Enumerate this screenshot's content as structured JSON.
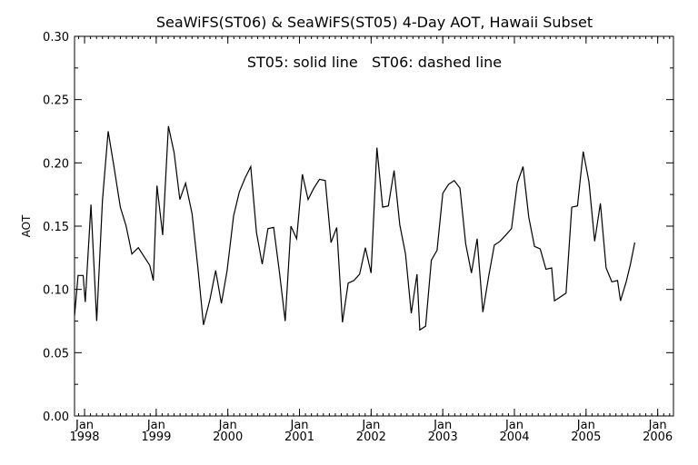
{
  "chart_data": {
    "type": "line",
    "title": "SeaWiFS(ST06) & SeaWiFS(ST05) 4-Day AOT, Hawaii Subset",
    "annotation": "ST05: solid line   ST06: dashed line",
    "ylabel": "AOT",
    "xlabel": "",
    "ylim": [
      0.0,
      0.3
    ],
    "yticks": [
      "0.00",
      "0.05",
      "0.10",
      "0.15",
      "0.20",
      "0.25",
      "0.30"
    ],
    "xlim": [
      1997.86,
      2006.22
    ],
    "xticks": [
      {
        "month": "Jan",
        "year": "1998"
      },
      {
        "month": "Jan",
        "year": "1999"
      },
      {
        "month": "Jan",
        "year": "2000"
      },
      {
        "month": "Jan",
        "year": "2001"
      },
      {
        "month": "Jan",
        "year": "2002"
      },
      {
        "month": "Jan",
        "year": "2003"
      },
      {
        "month": "Jan",
        "year": "2004"
      },
      {
        "month": "Jan",
        "year": "2005"
      },
      {
        "month": "Jan",
        "year": "2006"
      }
    ],
    "grid": false,
    "line_color": "#000000",
    "series": [
      {
        "name": "ST05",
        "style": "solid",
        "points": [
          [
            1997.86,
            0.079
          ],
          [
            1997.91,
            0.111
          ],
          [
            1997.98,
            0.111
          ],
          [
            1998.01,
            0.09
          ],
          [
            1998.09,
            0.167
          ],
          [
            1998.17,
            0.075
          ],
          [
            1998.25,
            0.17
          ],
          [
            1998.33,
            0.225
          ],
          [
            1998.41,
            0.197
          ],
          [
            1998.5,
            0.165
          ],
          [
            1998.58,
            0.15
          ],
          [
            1998.66,
            0.128
          ],
          [
            1998.75,
            0.133
          ],
          [
            1998.83,
            0.126
          ],
          [
            1998.91,
            0.119
          ],
          [
            1998.96,
            0.107
          ],
          [
            1999.01,
            0.182
          ],
          [
            1999.09,
            0.143
          ],
          [
            1999.17,
            0.229
          ],
          [
            1999.25,
            0.208
          ],
          [
            1999.33,
            0.171
          ],
          [
            1999.41,
            0.184
          ],
          [
            1999.5,
            0.16
          ],
          [
            1999.58,
            0.118
          ],
          [
            1999.66,
            0.072
          ],
          [
            1999.75,
            0.092
          ],
          [
            1999.83,
            0.115
          ],
          [
            1999.91,
            0.089
          ],
          [
            1999.99,
            0.115
          ],
          [
            2000.08,
            0.158
          ],
          [
            2000.16,
            0.177
          ],
          [
            2000.24,
            0.188
          ],
          [
            2000.32,
            0.197
          ],
          [
            2000.4,
            0.145
          ],
          [
            2000.48,
            0.12
          ],
          [
            2000.56,
            0.148
          ],
          [
            2000.64,
            0.149
          ],
          [
            2000.72,
            0.114
          ],
          [
            2000.8,
            0.075
          ],
          [
            2000.88,
            0.15
          ],
          [
            2000.96,
            0.14
          ],
          [
            2001.04,
            0.191
          ],
          [
            2001.12,
            0.171
          ],
          [
            2001.2,
            0.18
          ],
          [
            2001.28,
            0.187
          ],
          [
            2001.36,
            0.186
          ],
          [
            2001.44,
            0.137
          ],
          [
            2001.52,
            0.149
          ],
          [
            2001.6,
            0.074
          ],
          [
            2001.68,
            0.105
          ],
          [
            2001.76,
            0.107
          ],
          [
            2001.84,
            0.112
          ],
          [
            2001.92,
            0.133
          ],
          [
            2002.0,
            0.113
          ],
          [
            2002.08,
            0.212
          ],
          [
            2002.16,
            0.165
          ],
          [
            2002.24,
            0.166
          ],
          [
            2002.32,
            0.194
          ],
          [
            2002.4,
            0.151
          ],
          [
            2002.48,
            0.128
          ],
          [
            2002.56,
            0.081
          ],
          [
            2002.64,
            0.112
          ],
          [
            2002.68,
            0.068
          ],
          [
            2002.76,
            0.071
          ],
          [
            2002.84,
            0.123
          ],
          [
            2002.92,
            0.131
          ],
          [
            2003.0,
            0.176
          ],
          [
            2003.08,
            0.183
          ],
          [
            2003.16,
            0.186
          ],
          [
            2003.24,
            0.18
          ],
          [
            2003.32,
            0.136
          ],
          [
            2003.4,
            0.113
          ],
          [
            2003.48,
            0.14
          ],
          [
            2003.56,
            0.082
          ],
          [
            2003.64,
            0.11
          ],
          [
            2003.72,
            0.135
          ],
          [
            2003.8,
            0.138
          ],
          [
            2003.88,
            0.143
          ],
          [
            2003.96,
            0.148
          ],
          [
            2004.04,
            0.184
          ],
          [
            2004.12,
            0.197
          ],
          [
            2004.2,
            0.157
          ],
          [
            2004.28,
            0.134
          ],
          [
            2004.36,
            0.132
          ],
          [
            2004.44,
            0.116
          ],
          [
            2004.52,
            0.117
          ],
          [
            2004.56,
            0.091
          ],
          [
            2004.64,
            0.094
          ],
          [
            2004.72,
            0.097
          ],
          [
            2004.8,
            0.165
          ],
          [
            2004.88,
            0.166
          ],
          [
            2004.96,
            0.209
          ],
          [
            2005.04,
            0.185
          ],
          [
            2005.12,
            0.138
          ],
          [
            2005.2,
            0.168
          ],
          [
            2005.28,
            0.117
          ],
          [
            2005.36,
            0.106
          ],
          [
            2005.44,
            0.107
          ],
          [
            2005.48,
            0.091
          ],
          [
            2005.56,
            0.106
          ],
          [
            2005.62,
            0.12
          ],
          [
            2005.68,
            0.137
          ]
        ]
      }
    ]
  }
}
